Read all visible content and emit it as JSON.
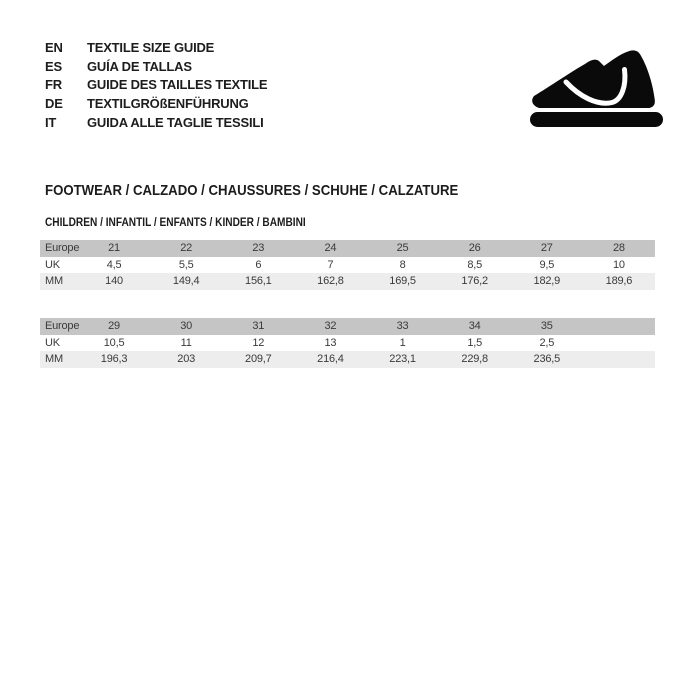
{
  "languages": [
    {
      "code": "EN",
      "label": "TEXTILE SIZE GUIDE"
    },
    {
      "code": "ES",
      "label": "GUÍA DE TALLAS"
    },
    {
      "code": "FR",
      "label": "GUIDE DES TAILLES TEXTILE"
    },
    {
      "code": "DE",
      "label": "TEXTILGRÖßENFÜHRUNG"
    },
    {
      "code": "IT",
      "label": "GUIDA ALLE TAGLIE TESSILI"
    }
  ],
  "icons": {
    "shoe": "sneaker-icon"
  },
  "section": {
    "title": "FOOTWEAR / CALZADO / CHAUSSURES / SCHUHE / CALZATURE",
    "subtitle": "CHILDREN / INFANTIL / ENFANTS / KINDER / BAMBINI"
  },
  "tables": [
    {
      "rows": [
        {
          "label": "Europe",
          "values": [
            "21",
            "22",
            "23",
            "24",
            "25",
            "26",
            "27",
            "28"
          ]
        },
        {
          "label": "UK",
          "values": [
            "4,5",
            "5,5",
            "6",
            "7",
            "8",
            "8,5",
            "9,5",
            "10"
          ]
        },
        {
          "label": "MM",
          "values": [
            "140",
            "149,4",
            "156,1",
            "162,8",
            "169,5",
            "176,2",
            "182,9",
            "189,6"
          ]
        }
      ]
    },
    {
      "rows": [
        {
          "label": "Europe",
          "values": [
            "29",
            "30",
            "31",
            "32",
            "33",
            "34",
            "35",
            ""
          ]
        },
        {
          "label": "UK",
          "values": [
            "10,5",
            "11",
            "12",
            "13",
            "1",
            "1,5",
            "2,5",
            ""
          ]
        },
        {
          "label": "MM",
          "values": [
            "196,3",
            "203",
            "209,7",
            "216,4",
            "223,1",
            "229,8",
            "236,5",
            ""
          ]
        }
      ]
    }
  ],
  "colors": {
    "page_bg": "#ffffff",
    "header_row_bg": "#c5c5c5",
    "shade_row_bg": "#ededed",
    "table_text": "#3a3a3a",
    "heading_text": "#1c1c1c",
    "icon": "#0a0a0a"
  }
}
